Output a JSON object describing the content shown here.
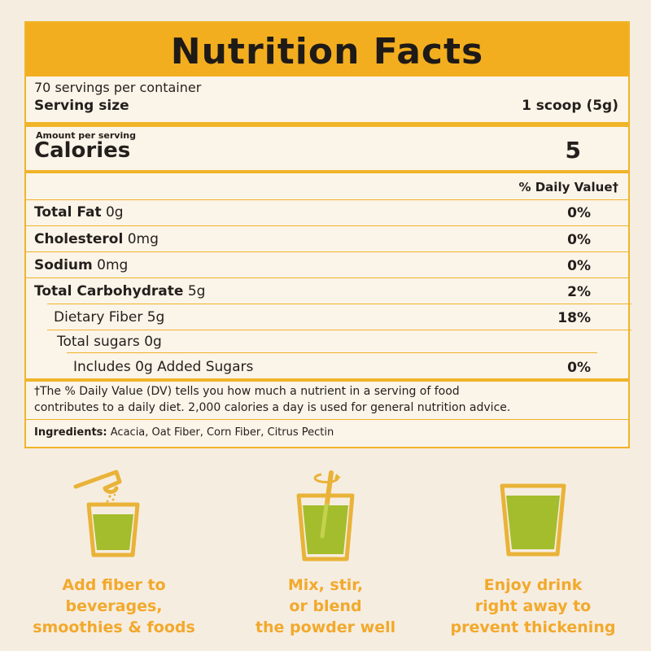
{
  "label": {
    "title": "Nutrition Facts",
    "servings": "70 servings per container",
    "serving_size_label": "Serving size",
    "serving_size_value": "1 scoop (5g)",
    "amount_per_serving": "Amount per serving",
    "calories_label": "Calories",
    "calories_value": "5",
    "dv_header": "% Daily Value†",
    "nutrients": [
      {
        "name": "Total Fat",
        "amount": "0g",
        "dv": "0%"
      },
      {
        "name": "Cholesterol",
        "amount": "0mg",
        "dv": "0%"
      },
      {
        "name": "Sodium",
        "amount": "0mg",
        "dv": "0%"
      },
      {
        "name": "Total Carbohydrate",
        "amount": "5g",
        "dv": "2%"
      },
      {
        "name": "Dietary Fiber 5g",
        "amount": "",
        "dv": "18%"
      },
      {
        "name": "Total sugars 0g",
        "amount": "",
        "dv": ""
      },
      {
        "name": "Includes 0g Added Sugars",
        "amount": "",
        "dv": "0%"
      }
    ],
    "footnote_line1": "†The % Daily Value (DV) tells you how much a nutrient in a serving of food",
    "footnote_line2": "contributes to a daily diet. 2,000 calories a day is used for general nutrition advice.",
    "ingredients_label": "Ingredients:",
    "ingredients_value": "Acacia, Oat Fiber, Corn Fiber,  Citrus Pectin"
  },
  "steps": [
    {
      "icon": "scoop-pour-icon",
      "line1": "Add fiber to",
      "line2": "beverages,",
      "line3": "smoothies & foods"
    },
    {
      "icon": "stir-glass-icon",
      "line1": "Mix, stir,",
      "line2": "or blend",
      "line3": "the powder well"
    },
    {
      "icon": "drink-glass-icon",
      "line1": "Enjoy drink",
      "line2": "right away to",
      "line3": "prevent thickening"
    }
  ],
  "colors": {
    "accent": "#f3ae1f",
    "drink": "#a4bd2c",
    "outline": "#e9b338",
    "step_text": "#f2a92b"
  }
}
